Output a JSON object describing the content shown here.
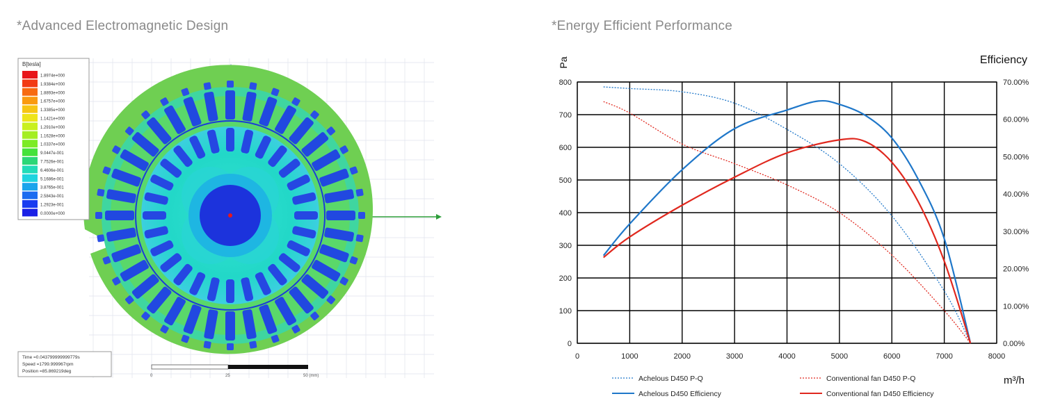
{
  "captions": {
    "left": "*Advanced Electromagnetic Design",
    "right": "*Energy Efficient Performance"
  },
  "em_figure": {
    "legend_title": "B[tesla]",
    "legend_values": [
      "1.8974e+000",
      "1.9384e+000",
      "1.8893e+000",
      "1.6757e+000",
      "1.3385e+000",
      "1.1421e+000",
      "1.2910e+000",
      "1.1628e+000",
      "1.0337e+000",
      "9.0447e-001",
      "7.7526e-001",
      "6.4606e-001",
      "5.1686e-001",
      "3.8765e-001",
      "2.5843e-001",
      "1.2923e-001",
      "0.0000e+000"
    ],
    "legend_colors": [
      "#e8161b",
      "#f23a14",
      "#f76a10",
      "#fa9a10",
      "#f7c515",
      "#eee41c",
      "#c9f01f",
      "#a4ee22",
      "#7ceb26",
      "#45e23a",
      "#2cd777",
      "#22dcb8",
      "#1fd4df",
      "#1aa4ec",
      "#1a6cf0",
      "#1a3cf0",
      "#1a20e6"
    ],
    "status_lines": [
      "Time   =0.043799999999779s",
      "Speed  =1799.999967rpm",
      "Position =85.869219deg"
    ],
    "scale_ticks": [
      "0",
      "25",
      "50 (mm)"
    ]
  },
  "chart_data": {
    "type": "line",
    "xlabel": "m³/h",
    "ylabel": "Pa",
    "y2label": "Efficiency",
    "xlim": [
      0,
      8000
    ],
    "ylim": [
      0,
      800
    ],
    "y2lim": [
      0,
      0.7
    ],
    "grid": true,
    "legend_position": "bottom",
    "x_ticks": [
      "0",
      "1000",
      "2000",
      "3000",
      "4000",
      "5000",
      "6000",
      "7000",
      "8000"
    ],
    "y_ticks": [
      "0",
      "100",
      "200",
      "300",
      "400",
      "500",
      "600",
      "700",
      "800"
    ],
    "y2_ticks": [
      "0.00%",
      "10.00%",
      "20.00%",
      "30.00%",
      "40.00%",
      "50.00%",
      "60.00%",
      "70.00%"
    ],
    "series": [
      {
        "name": "Achelous D450 P-Q",
        "axis": "left",
        "style": "dotted",
        "color": "#1f77c9",
        "x": [
          500,
          1000,
          2000,
          3000,
          4000,
          5000,
          6000,
          7000,
          7500
        ],
        "y": [
          785,
          780,
          770,
          735,
          655,
          550,
          390,
          160,
          0
        ]
      },
      {
        "name": "Achelous D450 Efficiency",
        "axis": "right",
        "style": "solid",
        "color": "#1f77c9",
        "x": [
          500,
          1000,
          2000,
          3000,
          4000,
          4600,
          5000,
          5500,
          6000,
          6500,
          7000,
          7500
        ],
        "y": [
          0.235,
          0.32,
          0.465,
          0.575,
          0.625,
          0.649,
          0.64,
          0.61,
          0.55,
          0.44,
          0.28,
          0
        ]
      },
      {
        "name": "Conventional fan D450 P-Q",
        "axis": "left",
        "style": "dotted",
        "color": "#e0281e",
        "x": [
          500,
          1000,
          2000,
          3000,
          4000,
          5000,
          6000,
          7000,
          7500
        ],
        "y": [
          740,
          705,
          610,
          550,
          485,
          400,
          270,
          100,
          0
        ]
      },
      {
        "name": "Conventional fan D450 Efficiency",
        "axis": "right",
        "style": "solid",
        "color": "#e0281e",
        "x": [
          500,
          1000,
          2000,
          3000,
          4000,
          5000,
          5500,
          6000,
          6500,
          7000,
          7500
        ],
        "y": [
          0.23,
          0.285,
          0.37,
          0.445,
          0.51,
          0.545,
          0.54,
          0.485,
          0.38,
          0.22,
          0
        ]
      }
    ]
  }
}
